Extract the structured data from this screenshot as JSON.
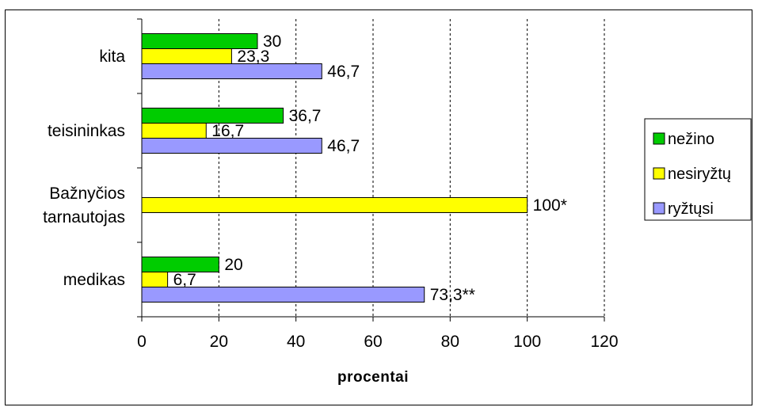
{
  "chart_data": {
    "type": "bar",
    "orientation": "horizontal",
    "categories": [
      "medikas",
      "Bažnyčios tarnautojas",
      "teisininkas",
      "kita"
    ],
    "category_label_lines": [
      [
        "medikas"
      ],
      [
        "Bažnyčios",
        "tarnautojas"
      ],
      [
        "teisininkas"
      ],
      [
        "kita"
      ]
    ],
    "series": [
      {
        "name": "nežino",
        "color": "#00cc00",
        "values": [
          20,
          null,
          36.7,
          30
        ],
        "labels": [
          "20",
          "",
          "36,7",
          "30"
        ]
      },
      {
        "name": "nesiryžtų",
        "color": "#ffff00",
        "values": [
          6.7,
          100,
          16.7,
          23.3
        ],
        "labels": [
          "6,7",
          "100*",
          "16,7",
          "23,3"
        ]
      },
      {
        "name": "ryžtųsi",
        "color": "#9999ff",
        "values": [
          73.3,
          null,
          46.7,
          46.7
        ],
        "labels": [
          "73,3**",
          "",
          "46,7",
          "46,7"
        ]
      }
    ],
    "xlim": [
      0,
      120
    ],
    "xticks": [
      0,
      20,
      40,
      60,
      80,
      100,
      120
    ],
    "xlabel": "procentai",
    "ylabel": "",
    "grid": "vertical dashed",
    "legend_position": "right"
  }
}
